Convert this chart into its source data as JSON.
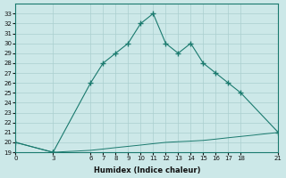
{
  "xlabel": "Humidex (Indice chaleur)",
  "bg_color": "#cce8e8",
  "grid_color": "#aacfcf",
  "line_color": "#1a7a6e",
  "x_ticks": [
    0,
    3,
    6,
    7,
    8,
    9,
    10,
    11,
    12,
    13,
    14,
    15,
    16,
    17,
    18,
    21
  ],
  "x_upper": [
    0,
    3,
    6,
    7,
    8,
    9,
    10,
    11,
    12,
    13,
    14,
    15,
    16,
    17,
    18,
    21
  ],
  "y_upper": [
    20,
    19,
    26,
    28,
    29,
    30,
    32,
    33,
    30,
    29,
    30,
    28,
    27,
    26,
    25,
    21
  ],
  "x_lower": [
    0,
    3,
    4,
    5,
    6,
    7,
    8,
    9,
    10,
    11,
    12,
    13,
    14,
    15,
    16,
    17,
    18,
    19,
    20,
    21
  ],
  "y_lower": [
    20,
    19,
    19.07,
    19.13,
    19.2,
    19.33,
    19.47,
    19.6,
    19.73,
    19.87,
    20.0,
    20.07,
    20.13,
    20.2,
    20.33,
    20.47,
    20.6,
    20.73,
    20.87,
    21.0
  ],
  "ylim": [
    19,
    34
  ],
  "xlim": [
    0,
    21
  ],
  "yticks": [
    19,
    20,
    21,
    22,
    23,
    24,
    25,
    26,
    27,
    28,
    29,
    30,
    31,
    32,
    33
  ]
}
